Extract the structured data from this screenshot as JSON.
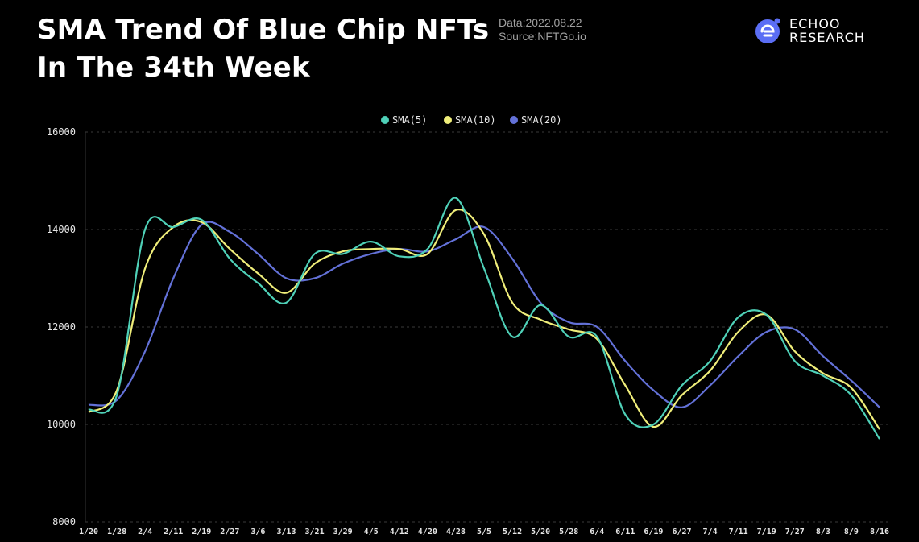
{
  "header": {
    "title_line1": "SMA Trend Of Blue Chip NFTs",
    "title_line2": "In The 34th Week",
    "date_text": "Data:2022.08.22",
    "source_text": "Source:NFTGo.io",
    "brand_line1": "ECHOO",
    "brand_line2": "RESEARCH",
    "brand_icon": "echoo-logo-icon",
    "brand_color": "#5b6ef5"
  },
  "chart_data": {
    "type": "line",
    "title": "",
    "xlabel": "",
    "ylabel": "",
    "ylim": [
      8000,
      16000
    ],
    "yticks": [
      8000,
      10000,
      12000,
      14000,
      16000
    ],
    "grid": "horizontal dashed",
    "legend_position": "top-center",
    "categories": [
      "1/20",
      "1/28",
      "2/4",
      "2/11",
      "2/19",
      "2/27",
      "3/6",
      "3/13",
      "3/21",
      "3/29",
      "4/5",
      "4/12",
      "4/20",
      "4/28",
      "5/5",
      "5/12",
      "5/20",
      "5/28",
      "6/4",
      "6/11",
      "6/19",
      "6/27",
      "7/4",
      "7/11",
      "7/19",
      "7/27",
      "8/3",
      "8/9",
      "8/16"
    ],
    "series": [
      {
        "name": "SMA(5)",
        "color": "#4fd1b8",
        "values": [
          10300,
          10600,
          14000,
          14050,
          14200,
          13400,
          12900,
          12500,
          13500,
          13500,
          13750,
          13450,
          13600,
          14650,
          13200,
          11800,
          12450,
          11800,
          11800,
          10200,
          10000,
          10800,
          11300,
          12200,
          12250,
          11300,
          11000,
          10600,
          9700
        ]
      },
      {
        "name": "SMA(10)",
        "color": "#f0ee7a",
        "values": [
          10250,
          10700,
          13200,
          14050,
          14150,
          13600,
          13100,
          12700,
          13300,
          13550,
          13600,
          13600,
          13500,
          14400,
          13900,
          12500,
          12150,
          11950,
          11750,
          10800,
          9950,
          10600,
          11100,
          11900,
          12250,
          11500,
          11050,
          10750,
          9900
        ]
      },
      {
        "name": "SMA(20)",
        "color": "#6371d8",
        "values": [
          10400,
          10500,
          11500,
          13000,
          14100,
          13950,
          13500,
          13000,
          13000,
          13300,
          13500,
          13600,
          13550,
          13800,
          14050,
          13400,
          12500,
          12100,
          12000,
          11300,
          10700,
          10350,
          10800,
          11400,
          11900,
          11950,
          11400,
          10900,
          10350
        ]
      }
    ]
  }
}
